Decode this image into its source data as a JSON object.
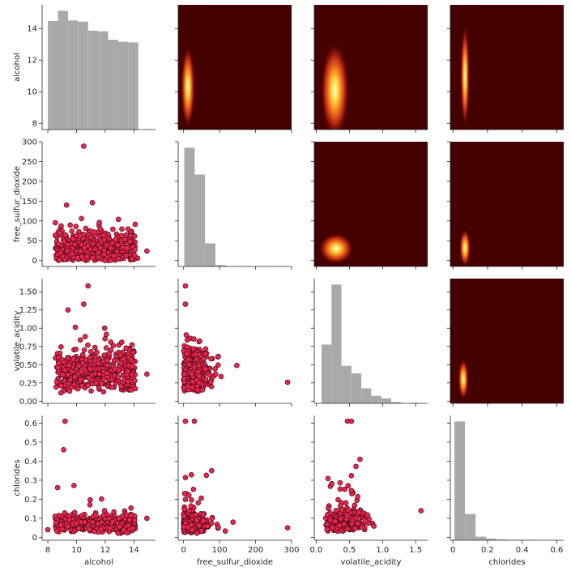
{
  "chart_data": {
    "type": "pairgrid",
    "variables": [
      "alcohol",
      "free_sulfur_dioxide",
      "volatile_acidity",
      "chlorides"
    ],
    "diagonal": "histogram",
    "lower": "scatter",
    "upper": "kde",
    "colors": {
      "histogram": "#a9a9a9",
      "scatter_fill": "#e8264e",
      "scatter_edge": "#3a0610",
      "kde_background": "#450000",
      "kde_peak": "#ffffcc"
    },
    "axes": {
      "alcohol": {
        "range": [
          7.6,
          15.5
        ],
        "ticks": [
          8,
          10,
          12,
          14
        ],
        "label": "alcohol"
      },
      "free_sulfur_dioxide": {
        "range": [
          -15,
          300
        ],
        "ticks": [
          0,
          50,
          100,
          150,
          200,
          250,
          300
        ],
        "ticks_x": [
          0,
          100,
          200,
          300
        ],
        "label": "free_sulfur_dioxide"
      },
      "volatile_acidity": {
        "range": [
          -0.03,
          1.68
        ],
        "ticks": [
          0.0,
          0.25,
          0.5,
          0.75,
          1.0,
          1.25,
          1.5
        ],
        "ticks_x": [
          0.0,
          0.5,
          1.0,
          1.5
        ],
        "tick_labels": [
          "0.00",
          "0.25",
          "0.50",
          "0.75",
          "1.00",
          "1.25",
          "1.50"
        ],
        "tick_labels_x": [
          "0.0",
          "0.5",
          "1.0",
          "1.5"
        ],
        "label": "volatile_acidity"
      },
      "chlorides": {
        "range": [
          -0.015,
          0.64
        ],
        "ticks": [
          0.0,
          0.1,
          0.2,
          0.3,
          0.4,
          0.5,
          0.6
        ],
        "ticks_x": [
          0.0,
          0.2,
          0.4,
          0.6
        ],
        "label": "chlorides"
      }
    },
    "histograms": {
      "alcohol": {
        "bins": [
          8.0,
          8.7,
          9.4,
          10.1,
          10.8,
          11.5,
          12.2,
          12.9,
          13.6,
          14.3
        ],
        "heights": [
          9.0,
          9.85,
          9.05,
          8.95,
          8.2,
          8.15,
          7.45,
          7.28,
          7.23
        ]
      },
      "free_sulfur_dioxide": {
        "bins": [
          2,
          30.8,
          59.6,
          88.4,
          117.2,
          146,
          174.8,
          203.6,
          232.4,
          261.2,
          289
        ],
        "heights": [
          190,
          147,
          37,
          2.3,
          0.5,
          0.05,
          0,
          0,
          0,
          0.2
        ]
      },
      "volatile_acidity": {
        "bins": [
          0.08,
          0.23,
          0.38,
          0.53,
          0.68,
          0.83,
          0.98,
          1.13,
          1.28,
          1.43,
          1.58
        ],
        "heights": [
          0.47,
          0.95,
          0.3,
          0.24,
          0.12,
          0.06,
          0.04,
          0.01,
          0.0,
          0.005
        ]
      },
      "chlorides": {
        "bins": [
          0.009,
          0.07,
          0.131,
          0.192,
          0.253,
          0.314,
          0.375,
          0.436,
          0.497,
          0.558,
          0.619
        ],
        "heights": [
          0.61,
          0.135,
          0.018,
          0.008,
          0.004,
          0.002,
          0.001,
          0.001,
          0.0,
          0.0
        ]
      }
    },
    "kde_peaks": [
      {
        "x": "free_sulfur_dioxide",
        "y": "alcohol",
        "cx": 12,
        "cy": 10.3,
        "sx": 9,
        "sy": 1.2
      },
      {
        "x": "volatile_acidity",
        "y": "alcohol",
        "cx": 0.28,
        "cy": 10.1,
        "sx": 0.1,
        "sy": 1.4
      },
      {
        "x": "chlorides",
        "y": "alcohol",
        "cx": 0.07,
        "cy": 11,
        "sx": 0.012,
        "sy": 1.5
      },
      {
        "x": "volatile_acidity",
        "y": "free_sulfur_dioxide",
        "cx": 0.3,
        "cy": 30,
        "sx": 0.12,
        "sy": 18
      },
      {
        "x": "chlorides",
        "y": "free_sulfur_dioxide",
        "cx": 0.07,
        "cy": 32,
        "sx": 0.015,
        "sy": 22
      },
      {
        "x": "chlorides",
        "y": "volatile_acidity",
        "cx": 0.06,
        "cy": 0.3,
        "sx": 0.014,
        "sy": 0.13
      }
    ],
    "scatter_notes": "Red circular markers with dark outlines; dense overlapping clouds."
  }
}
